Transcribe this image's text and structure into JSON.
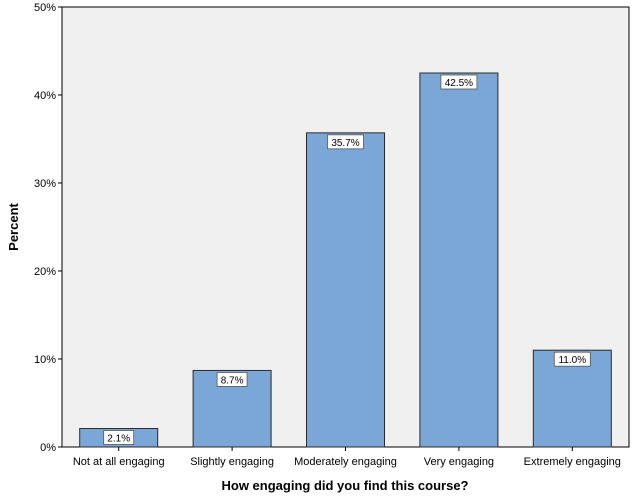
{
  "chart_data": {
    "type": "bar",
    "title": "",
    "xlabel": "How engaging did you find this course?",
    "ylabel": "Percent",
    "categories": [
      "Not at all engaging",
      "Slightly engaging",
      "Moderately engaging",
      "Very engaging",
      "Extremely engaging"
    ],
    "values": [
      2.1,
      8.7,
      35.7,
      42.5,
      11.0
    ],
    "data_labels": [
      "2.1%",
      "8.7%",
      "35.7%",
      "42.5%",
      "11.0%"
    ],
    "ylim": [
      0,
      50
    ],
    "yticks": [
      0,
      10,
      20,
      30,
      40,
      50
    ],
    "ytick_labels": [
      "0%",
      "10%",
      "20%",
      "30%",
      "40%",
      "50%"
    ],
    "grid": false,
    "colors": {
      "bar_fill": "#7ba7d6",
      "bar_stroke": "#2b2b2b",
      "plot_background": "#f0f0f0",
      "label_background": "#ffffff"
    }
  }
}
